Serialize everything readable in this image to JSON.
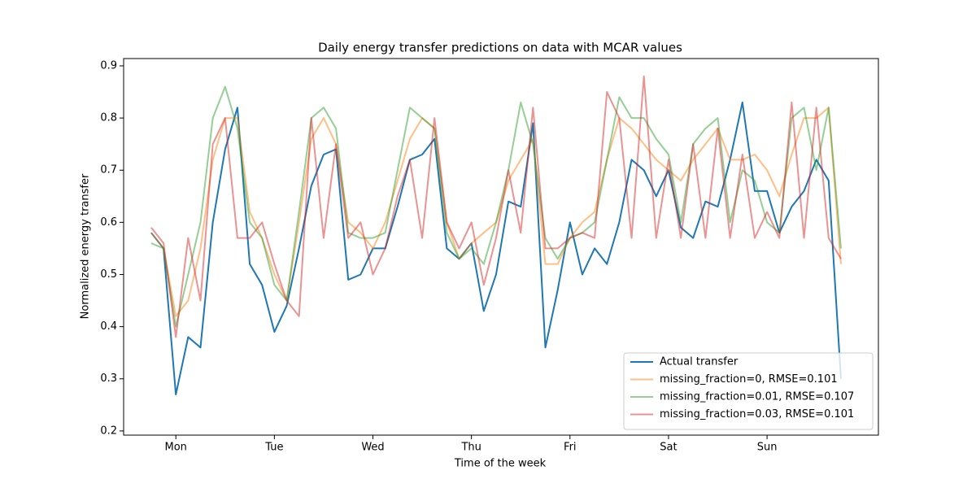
{
  "chart_data": {
    "type": "line",
    "title": "Daily energy transfer predictions on data with MCAR values",
    "xlabel": "Time of the week",
    "ylabel": "Normalized energy transfer",
    "x": [
      -0.25,
      -0.125,
      0,
      0.125,
      0.25,
      0.375,
      0.5,
      0.625,
      0.75,
      0.875,
      1,
      1.125,
      1.25,
      1.375,
      1.5,
      1.625,
      1.75,
      1.875,
      2,
      2.125,
      2.25,
      2.375,
      2.5,
      2.625,
      2.75,
      2.875,
      3,
      3.125,
      3.25,
      3.375,
      3.5,
      3.625,
      3.75,
      3.875,
      4,
      4.125,
      4.25,
      4.375,
      4.5,
      4.625,
      4.75,
      4.875,
      5,
      5.125,
      5.25,
      5.375,
      5.5,
      5.625,
      5.75,
      5.875,
      6,
      6.125,
      6.25,
      6.375,
      6.5,
      6.625,
      6.75
    ],
    "xlim": [
      -0.53,
      7.13
    ],
    "xticks": [
      {
        "value": 0,
        "label": "Mon"
      },
      {
        "value": 1,
        "label": "Tue"
      },
      {
        "value": 2,
        "label": "Wed"
      },
      {
        "value": 3,
        "label": "Thu"
      },
      {
        "value": 4,
        "label": "Fri"
      },
      {
        "value": 5,
        "label": "Sat"
      },
      {
        "value": 6,
        "label": "Sun"
      }
    ],
    "ylim": [
      0.192,
      0.914
    ],
    "yticks": [
      0.2,
      0.3,
      0.4,
      0.5,
      0.6,
      0.7,
      0.8,
      0.9
    ],
    "legend": "lower right",
    "series": [
      {
        "name": "Actual transfer",
        "color": "#1f77b4",
        "opacity": 1,
        "values": [
          0.58,
          0.55,
          0.27,
          0.38,
          0.36,
          0.6,
          0.74,
          0.82,
          0.52,
          0.48,
          0.39,
          0.44,
          0.55,
          0.67,
          0.73,
          0.74,
          0.49,
          0.5,
          0.55,
          0.55,
          0.63,
          0.72,
          0.73,
          0.76,
          0.55,
          0.53,
          0.56,
          0.43,
          0.5,
          0.64,
          0.63,
          0.79,
          0.36,
          0.47,
          0.6,
          0.5,
          0.55,
          0.52,
          0.6,
          0.72,
          0.7,
          0.65,
          0.7,
          0.59,
          0.57,
          0.64,
          0.63,
          0.72,
          0.83,
          0.66,
          0.66,
          0.58,
          0.63,
          0.66,
          0.72,
          0.68,
          0.3
        ]
      },
      {
        "name": "missing_fraction=0, RMSE=0.101",
        "color": "#ff7f0e",
        "opacity": 0.5,
        "values": [
          0.58,
          0.55,
          0.42,
          0.45,
          0.55,
          0.72,
          0.8,
          0.8,
          0.62,
          0.57,
          0.5,
          0.45,
          0.6,
          0.76,
          0.8,
          0.75,
          0.6,
          0.58,
          0.55,
          0.6,
          0.68,
          0.76,
          0.8,
          0.78,
          0.6,
          0.53,
          0.56,
          0.58,
          0.6,
          0.68,
          0.72,
          0.76,
          0.52,
          0.52,
          0.57,
          0.6,
          0.62,
          0.72,
          0.8,
          0.78,
          0.75,
          0.72,
          0.7,
          0.68,
          0.72,
          0.75,
          0.78,
          0.72,
          0.72,
          0.73,
          0.7,
          0.65,
          0.73,
          0.8,
          0.8,
          0.82,
          0.52
        ]
      },
      {
        "name": "missing_fraction=0.01, RMSE=0.107",
        "color": "#2ca02c",
        "opacity": 0.5,
        "values": [
          0.56,
          0.55,
          0.4,
          0.5,
          0.6,
          0.8,
          0.86,
          0.78,
          0.6,
          0.57,
          0.48,
          0.45,
          0.62,
          0.8,
          0.82,
          0.78,
          0.58,
          0.57,
          0.57,
          0.58,
          0.7,
          0.82,
          0.8,
          0.78,
          0.58,
          0.53,
          0.55,
          0.52,
          0.6,
          0.7,
          0.83,
          0.75,
          0.57,
          0.53,
          0.57,
          0.58,
          0.6,
          0.72,
          0.84,
          0.8,
          0.8,
          0.76,
          0.73,
          0.6,
          0.75,
          0.78,
          0.8,
          0.6,
          0.7,
          0.68,
          0.6,
          0.58,
          0.8,
          0.82,
          0.7,
          0.82,
          0.55
        ]
      },
      {
        "name": "missing_fraction=0.03, RMSE=0.101",
        "color": "#d62728",
        "opacity": 0.5,
        "values": [
          0.59,
          0.56,
          0.38,
          0.57,
          0.45,
          0.75,
          0.8,
          0.57,
          0.57,
          0.6,
          0.52,
          0.45,
          0.42,
          0.8,
          0.57,
          0.75,
          0.57,
          0.6,
          0.5,
          0.55,
          0.65,
          0.72,
          0.57,
          0.8,
          0.6,
          0.55,
          0.6,
          0.48,
          0.57,
          0.7,
          0.58,
          0.82,
          0.55,
          0.55,
          0.57,
          0.58,
          0.57,
          0.85,
          0.8,
          0.57,
          0.88,
          0.57,
          0.72,
          0.57,
          0.75,
          0.57,
          0.78,
          0.57,
          0.73,
          0.57,
          0.62,
          0.57,
          0.83,
          0.57,
          0.82,
          0.57,
          0.53
        ]
      }
    ]
  }
}
